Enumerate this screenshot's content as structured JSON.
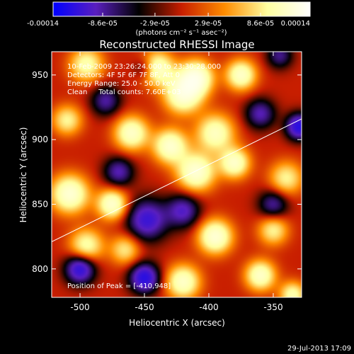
{
  "chart_data": {
    "type": "heatmap",
    "title": "Reconstructed RHESSI Image",
    "xlabel": "Heliocentric X (arcsec)",
    "ylabel": "Heliocentric Y (arcsec)",
    "xlim": [
      -522,
      -328
    ],
    "ylim": [
      778,
      968
    ],
    "x_ticks": [
      -500,
      -450,
      -400,
      -350
    ],
    "x_tick_labels": [
      "-500",
      "-450",
      "-400",
      "-350"
    ],
    "y_ticks": [
      800,
      850,
      900,
      950
    ],
    "y_tick_labels": [
      "800",
      "850",
      "900",
      "950"
    ],
    "colorbar": {
      "range": [
        -0.00014,
        0.00014
      ],
      "ticks": [
        -0.00014,
        -8.6e-05,
        -2.9e-05,
        2.9e-05,
        8.6e-05,
        0.00014
      ],
      "tick_labels": [
        "-0.00014",
        "-8.6e-05",
        "-2.9e-05",
        "2.9e-05",
        "8.6e-05",
        "0.00014"
      ],
      "unit_label": "(photons cm⁻² s⁻¹ asec⁻²)",
      "colors": [
        "#0000ff",
        "#5a1fbf",
        "#000000",
        "#c81e00",
        "#ff8c00",
        "#ffffa0",
        "#ffffff"
      ]
    },
    "info_lines": [
      "10-Feb-2009 23:26:24.000 to 23:30:28.000",
      "Detectors: 4F 5F 6F 7F 8F, Att 0",
      "Energy Range: 25.0 - 50.0 keV",
      "Clean     Total counts: 7.60E+03"
    ],
    "peak_label": "Position of Peak = [-410,948]",
    "limb_line": {
      "x": [
        -522,
        -328
      ],
      "y": [
        821,
        916
      ]
    },
    "blobs": [
      {
        "x": -410,
        "y": 948,
        "v": 1.0,
        "s": 9
      },
      {
        "x": -420,
        "y": 935,
        "v": 0.95,
        "s": 10
      },
      {
        "x": -440,
        "y": 955,
        "v": 0.85,
        "s": 9
      },
      {
        "x": -495,
        "y": 958,
        "v": 0.7,
        "s": 9
      },
      {
        "x": -375,
        "y": 950,
        "v": 0.85,
        "s": 8
      },
      {
        "x": -395,
        "y": 905,
        "v": 0.8,
        "s": 10
      },
      {
        "x": -430,
        "y": 895,
        "v": 0.9,
        "s": 9
      },
      {
        "x": -460,
        "y": 905,
        "v": 0.85,
        "s": 9
      },
      {
        "x": -510,
        "y": 915,
        "v": 0.6,
        "s": 8
      },
      {
        "x": -508,
        "y": 858,
        "v": 0.95,
        "s": 10
      },
      {
        "x": -475,
        "y": 850,
        "v": 0.9,
        "s": 8
      },
      {
        "x": -410,
        "y": 875,
        "v": 0.95,
        "s": 10
      },
      {
        "x": -380,
        "y": 882,
        "v": 0.85,
        "s": 8
      },
      {
        "x": -340,
        "y": 870,
        "v": 0.6,
        "s": 9
      },
      {
        "x": -495,
        "y": 818,
        "v": 0.7,
        "s": 9
      },
      {
        "x": -395,
        "y": 825,
        "v": 0.95,
        "s": 9
      },
      {
        "x": -350,
        "y": 830,
        "v": 0.6,
        "s": 8
      },
      {
        "x": -420,
        "y": 790,
        "v": 0.85,
        "s": 9
      },
      {
        "x": -360,
        "y": 795,
        "v": 0.85,
        "s": 8
      },
      {
        "x": -335,
        "y": 780,
        "v": 0.7,
        "s": 7
      },
      {
        "x": -465,
        "y": 815,
        "v": 0.55,
        "s": 8
      },
      {
        "x": -500,
        "y": 800,
        "v": -0.9,
        "s": 8
      },
      {
        "x": -450,
        "y": 793,
        "v": -0.95,
        "s": 8
      },
      {
        "x": -448,
        "y": 838,
        "v": -0.8,
        "s": 11
      },
      {
        "x": -420,
        "y": 845,
        "v": -0.65,
        "s": 9
      },
      {
        "x": -330,
        "y": 910,
        "v": -0.95,
        "s": 7
      },
      {
        "x": -360,
        "y": 920,
        "v": -0.6,
        "s": 8
      },
      {
        "x": -480,
        "y": 930,
        "v": -0.55,
        "s": 8
      },
      {
        "x": -470,
        "y": 875,
        "v": -0.6,
        "s": 8
      },
      {
        "x": -350,
        "y": 850,
        "v": -0.55,
        "s": 8
      },
      {
        "x": -450,
        "y": 955,
        "v": -0.4,
        "s": 6
      },
      {
        "x": -345,
        "y": 965,
        "v": -0.5,
        "s": 7
      }
    ]
  },
  "footer": {
    "date": "29-Jul-2013 17:09"
  }
}
